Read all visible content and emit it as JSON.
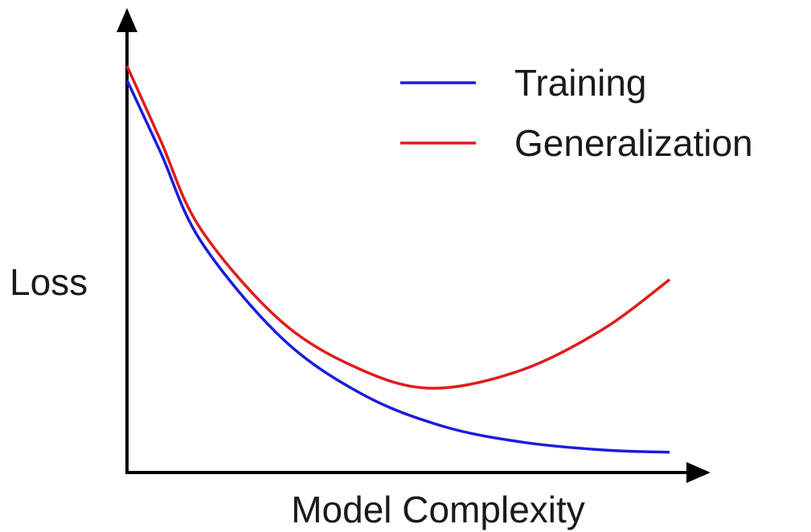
{
  "chart_data": {
    "type": "line",
    "x_label": "Model Complexity",
    "y_label": "Loss",
    "xlim": [
      0,
      10
    ],
    "ylim": [
      0,
      10
    ],
    "legend": "top-right",
    "series": [
      {
        "name": "Training",
        "color": "#1c1cdc",
        "x": [
          0,
          0.58,
          1.27,
          2.66,
          4.04,
          5.43,
          6.81,
          8.2,
          9.35
        ],
        "values": [
          8.52,
          6.95,
          5.03,
          2.93,
          1.71,
          1.01,
          0.66,
          0.49,
          0.44
        ]
      },
      {
        "name": "Generalization",
        "color": "#e01c1c",
        "x": [
          0,
          0.58,
          1.27,
          2.66,
          4.04,
          5.29,
          6.81,
          8.2,
          9.35
        ],
        "values": [
          8.83,
          7.21,
          5.29,
          3.28,
          2.23,
          1.83,
          2.23,
          3.11,
          4.19
        ]
      }
    ]
  }
}
